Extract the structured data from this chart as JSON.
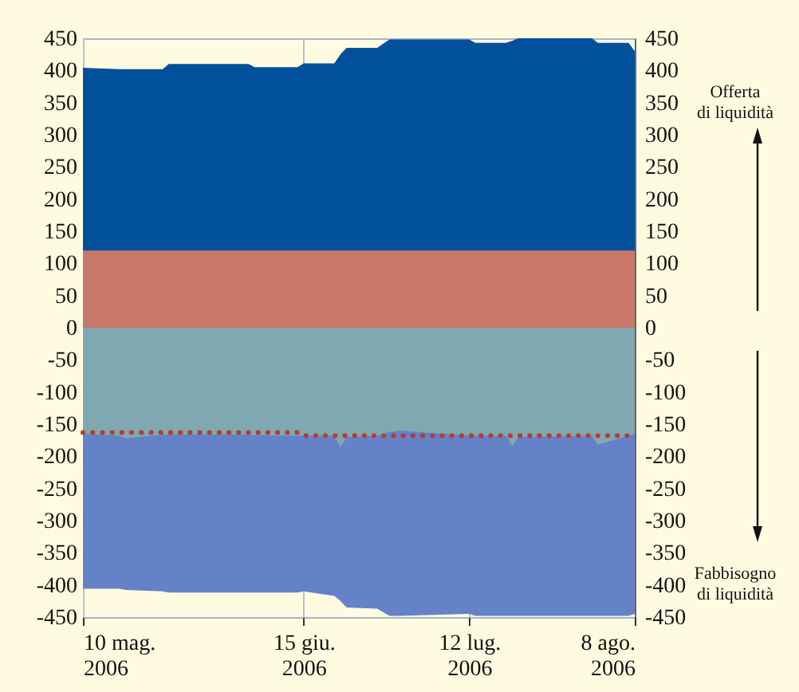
{
  "chart_data": {
    "type": "area",
    "legend": false,
    "grid": "x",
    "x": [
      "2006-05-10",
      "2006-05-16",
      "2006-05-17",
      "2006-05-23",
      "2006-05-24",
      "2006-06-06",
      "2006-06-07",
      "2006-06-14",
      "2006-06-15",
      "2006-06-20",
      "2006-06-21",
      "2006-06-22",
      "2006-06-27",
      "2006-06-29",
      "2006-07-01",
      "2006-07-12",
      "2006-07-13",
      "2006-07-18",
      "2006-07-19",
      "2006-07-20",
      "2006-08-01",
      "2006-08-02",
      "2006-08-07",
      "2006-08-08"
    ],
    "series": [
      {
        "color": "#00509c",
        "values": [
          404,
          402,
          402,
          402,
          410,
          410,
          405,
          405,
          411,
          411,
          425,
          435,
          435,
          448,
          448,
          448,
          443,
          443,
          446,
          450,
          450,
          443,
          443,
          430
        ]
      },
      {
        "color": "#c87868",
        "values": [
          120,
          120,
          120,
          120,
          120,
          120,
          120,
          120,
          120,
          120,
          120,
          120,
          120,
          120,
          120,
          120,
          120,
          120,
          120,
          120,
          120,
          120,
          120,
          120
        ]
      },
      {
        "color": "#6482c8",
        "values": [
          -406,
          -406,
          -408,
          -410,
          -412,
          -412,
          -412,
          -412,
          -410,
          -417,
          -425,
          -435,
          -437,
          -448,
          -448,
          -445,
          -448,
          -448,
          -448,
          -448,
          -448,
          -448,
          -448,
          -445
        ]
      },
      {
        "color": "#80a8b0",
        "values": [
          -165,
          -168,
          -172,
          -166,
          -166,
          -166,
          -167,
          -168,
          -168,
          -168,
          -186,
          -170,
          -168,
          -162,
          -160,
          -168,
          -168,
          -168,
          -184,
          -170,
          -168,
          -182,
          -168,
          -165
        ]
      },
      {
        "type": "line",
        "line_style": "dotted",
        "color": "#b83c30",
        "values": [
          -163,
          -163,
          -163,
          -163,
          -163,
          -163,
          -163,
          -163,
          -168,
          -168,
          -168,
          -168,
          -168,
          -168,
          -168,
          -168,
          -168,
          -168,
          -168,
          -168,
          -168,
          -168,
          -168,
          -168
        ]
      }
    ],
    "xlim": [
      "2006-05-10",
      "2006-08-08"
    ],
    "xticks": [
      {
        "value": "2006-05-10",
        "label": "10 mag.\n2006"
      },
      {
        "value": "2006-06-15",
        "label": "15 giu.\n2006"
      },
      {
        "value": "2006-07-12",
        "label": "12 lug.\n2006"
      },
      {
        "value": "2006-08-08",
        "label": "8 ago.\n2006"
      }
    ],
    "ylim": [
      -450,
      450
    ],
    "yticks": [
      -450,
      -400,
      -350,
      -300,
      -250,
      -200,
      -150,
      -100,
      -50,
      0,
      50,
      100,
      150,
      200,
      250,
      300,
      350,
      400,
      450
    ],
    "y2lim": [
      -450,
      450
    ],
    "y2ticks": [
      -450,
      -400,
      -350,
      -300,
      -250,
      -200,
      -150,
      -100,
      -50,
      0,
      50,
      100,
      150,
      200,
      250,
      300,
      350,
      400,
      450
    ],
    "annotations": [
      "Offerta\ndi liquidità",
      "Fabbisogno\ndi liquidità"
    ]
  }
}
